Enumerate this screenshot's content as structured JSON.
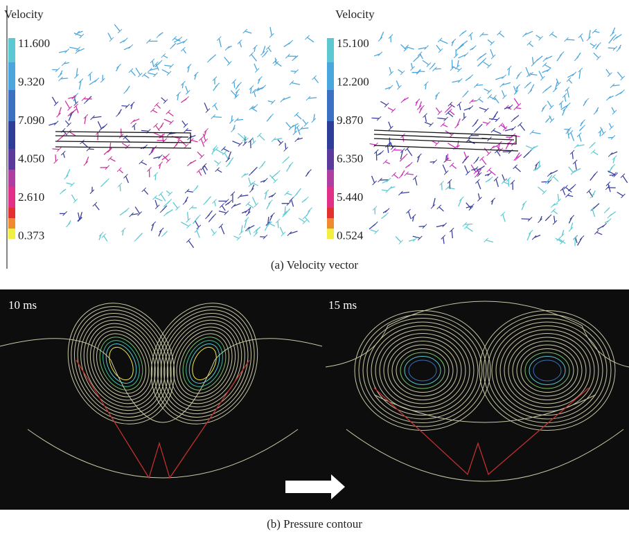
{
  "panel_a": {
    "left": {
      "title": "Velocity",
      "scale": [
        "11.600",
        "9.320",
        "7.090",
        "4.050",
        "2.610",
        "0.373"
      ]
    },
    "right": {
      "title": "Velocity",
      "scale": [
        "15.100",
        "12.200",
        "9.870",
        "6.350",
        "5.440",
        "0.524"
      ]
    },
    "caption": "(a) Velocity vector"
  },
  "panel_b": {
    "left_label": "10 ms",
    "right_label": "15 ms",
    "caption": "(b) Pressure contour"
  }
}
